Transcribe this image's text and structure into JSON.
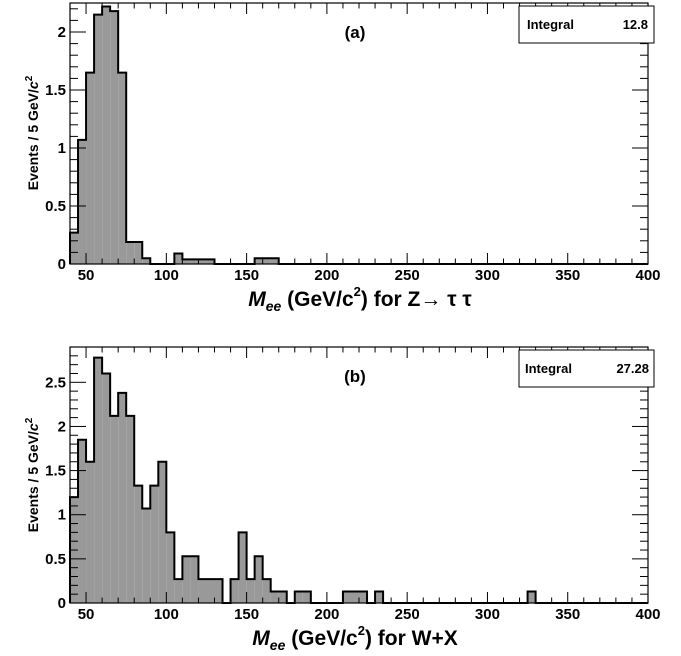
{
  "chart_data": [
    {
      "type": "bar",
      "panel_label": "(a)",
      "ylabel": "Events / 5 GeV/c²",
      "xlabel": "M_ee (GeV/c²) for Z→ τ τ",
      "xlabel_parts": {
        "M": "M",
        "sub": "ee",
        "mid": " (GeV/c",
        "sup": "2",
        "tail": ") for Z→ τ τ"
      },
      "ylabel_parts": {
        "main": "Events / 5 GeV/",
        "c": "c",
        "sup": "2"
      },
      "stats": {
        "label": "Integral",
        "value": "12.8"
      },
      "xlim": [
        40,
        400
      ],
      "ylim": [
        0,
        2.25
      ],
      "bin_width": 5,
      "x_ticks": [
        "50",
        "100",
        "150",
        "200",
        "250",
        "300",
        "350",
        "400"
      ],
      "y_ticks": [
        "0",
        "0.5",
        "1",
        "1.5",
        "2"
      ],
      "bins": [
        {
          "x": 40,
          "y": 0.27
        },
        {
          "x": 45,
          "y": 1.07
        },
        {
          "x": 50,
          "y": 1.65
        },
        {
          "x": 55,
          "y": 2.15
        },
        {
          "x": 60,
          "y": 2.22
        },
        {
          "x": 65,
          "y": 2.18
        },
        {
          "x": 70,
          "y": 1.65
        },
        {
          "x": 75,
          "y": 0.19
        },
        {
          "x": 80,
          "y": 0.19
        },
        {
          "x": 85,
          "y": 0.05
        },
        {
          "x": 105,
          "y": 0.09
        },
        {
          "x": 110,
          "y": 0.04
        },
        {
          "x": 115,
          "y": 0.04
        },
        {
          "x": 120,
          "y": 0.04
        },
        {
          "x": 125,
          "y": 0.04
        },
        {
          "x": 155,
          "y": 0.05
        },
        {
          "x": 160,
          "y": 0.05
        },
        {
          "x": 165,
          "y": 0.05
        }
      ]
    },
    {
      "type": "bar",
      "panel_label": "(b)",
      "ylabel": "Events / 5 GeV/c²",
      "xlabel": "M_ee (GeV/c²) for W+X",
      "xlabel_parts": {
        "M": "M",
        "sub": "ee",
        "mid": " (GeV/c",
        "sup": "2",
        "tail": ") for W+X"
      },
      "ylabel_parts": {
        "main": "Events / 5 GeV/",
        "c": "c",
        "sup": "2"
      },
      "stats": {
        "label": "Integral",
        "value": "27.28"
      },
      "xlim": [
        40,
        400
      ],
      "ylim": [
        0,
        2.9
      ],
      "bin_width": 5,
      "x_ticks": [
        "50",
        "100",
        "150",
        "200",
        "250",
        "300",
        "350",
        "400"
      ],
      "y_ticks": [
        "0",
        "0.5",
        "1",
        "1.5",
        "2",
        "2.5"
      ],
      "bins": [
        {
          "x": 40,
          "y": 1.2
        },
        {
          "x": 45,
          "y": 1.85
        },
        {
          "x": 50,
          "y": 1.6
        },
        {
          "x": 55,
          "y": 2.78
        },
        {
          "x": 60,
          "y": 2.6
        },
        {
          "x": 65,
          "y": 2.12
        },
        {
          "x": 70,
          "y": 2.38
        },
        {
          "x": 75,
          "y": 2.12
        },
        {
          "x": 80,
          "y": 1.33
        },
        {
          "x": 85,
          "y": 1.07
        },
        {
          "x": 90,
          "y": 1.33
        },
        {
          "x": 95,
          "y": 1.6
        },
        {
          "x": 100,
          "y": 0.8
        },
        {
          "x": 105,
          "y": 0.27
        },
        {
          "x": 110,
          "y": 0.53
        },
        {
          "x": 115,
          "y": 0.53
        },
        {
          "x": 120,
          "y": 0.27
        },
        {
          "x": 125,
          "y": 0.27
        },
        {
          "x": 130,
          "y": 0.27
        },
        {
          "x": 140,
          "y": 0.27
        },
        {
          "x": 145,
          "y": 0.8
        },
        {
          "x": 150,
          "y": 0.27
        },
        {
          "x": 155,
          "y": 0.53
        },
        {
          "x": 160,
          "y": 0.27
        },
        {
          "x": 165,
          "y": 0.13
        },
        {
          "x": 170,
          "y": 0.13
        },
        {
          "x": 180,
          "y": 0.13
        },
        {
          "x": 185,
          "y": 0.13
        },
        {
          "x": 210,
          "y": 0.13
        },
        {
          "x": 215,
          "y": 0.13
        },
        {
          "x": 220,
          "y": 0.13
        },
        {
          "x": 230,
          "y": 0.13
        },
        {
          "x": 325,
          "y": 0.13
        }
      ]
    }
  ]
}
